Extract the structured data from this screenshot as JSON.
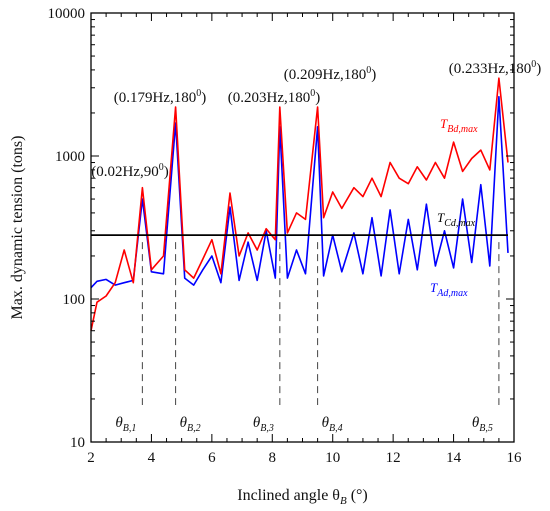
{
  "chart_data": {
    "type": "line",
    "xlabel": "Inclined angle θ",
    "xlabel_sub": "B",
    "xlabel_unit": " (°)",
    "ylabel": "Max. dynamic tension (tons)",
    "y_scale": "log",
    "xlim": [
      2,
      16
    ],
    "ylim": [
      10,
      10000
    ],
    "x_ticks": [
      2,
      4,
      6,
      8,
      10,
      12,
      14,
      16
    ],
    "y_ticks": [
      10,
      100,
      1000,
      10000
    ],
    "grid": false,
    "legend": "none",
    "colors": {
      "Bd": "#ff0000",
      "Ad": "#0000ff",
      "Cd": "#000000"
    },
    "series": [
      {
        "name": "T_Bd,max",
        "label_main": "T",
        "label_sub": "Bd,max",
        "color": "#ff0000",
        "x": [
          2.0,
          2.2,
          2.5,
          2.8,
          3.1,
          3.4,
          3.7,
          4.0,
          4.4,
          4.8,
          5.1,
          5.4,
          5.7,
          6.0,
          6.3,
          6.6,
          6.9,
          7.2,
          7.5,
          7.8,
          8.1,
          8.25,
          8.5,
          8.8,
          9.1,
          9.5,
          9.7,
          10.0,
          10.3,
          10.7,
          11.0,
          11.3,
          11.6,
          11.9,
          12.2,
          12.5,
          12.8,
          13.1,
          13.4,
          13.7,
          14.0,
          14.3,
          14.6,
          14.9,
          15.2,
          15.5,
          15.8
        ],
        "values": [
          60,
          95,
          105,
          130,
          220,
          130,
          600,
          160,
          200,
          2200,
          160,
          140,
          190,
          260,
          150,
          550,
          200,
          290,
          220,
          310,
          260,
          2200,
          290,
          400,
          360,
          2200,
          370,
          560,
          430,
          600,
          520,
          700,
          520,
          900,
          700,
          640,
          840,
          680,
          900,
          700,
          1250,
          780,
          960,
          1100,
          800,
          3500,
          900
        ]
      },
      {
        "name": "T_Ad,max",
        "label_main": "T",
        "label_sub": "Ad,max",
        "color": "#0000ff",
        "x": [
          2.0,
          2.2,
          2.5,
          2.8,
          3.1,
          3.4,
          3.7,
          4.0,
          4.4,
          4.8,
          5.1,
          5.4,
          5.7,
          6.0,
          6.3,
          6.6,
          6.9,
          7.2,
          7.5,
          7.8,
          8.1,
          8.25,
          8.5,
          8.8,
          9.1,
          9.5,
          9.7,
          10.0,
          10.3,
          10.7,
          11.0,
          11.3,
          11.6,
          11.9,
          12.2,
          12.5,
          12.8,
          13.1,
          13.4,
          13.7,
          14.0,
          14.3,
          14.6,
          14.9,
          15.2,
          15.5,
          15.8
        ],
        "values": [
          120,
          133,
          137,
          125,
          130,
          135,
          500,
          155,
          150,
          1700,
          140,
          125,
          160,
          200,
          130,
          440,
          135,
          250,
          135,
          300,
          140,
          1600,
          140,
          220,
          150,
          1600,
          145,
          280,
          155,
          290,
          150,
          370,
          145,
          420,
          150,
          360,
          160,
          460,
          170,
          300,
          165,
          500,
          180,
          630,
          170,
          2600,
          210
        ]
      },
      {
        "name": "T_Cd,max",
        "label_main": "T",
        "label_sub": "Cd,max",
        "color": "#000000",
        "x": [
          2.0,
          15.8
        ],
        "values": [
          280,
          280
        ]
      }
    ],
    "annotations": [
      {
        "text": "(0.02Hz,90",
        "sup": "0",
        "close": ")",
        "x": 3.7,
        "y": 600
      },
      {
        "text": "(0.179Hz,180",
        "sup": "0",
        "close": ")",
        "x": 4.8,
        "y": 2200
      },
      {
        "text": "(0.203Hz,180",
        "sup": "0",
        "close": ")",
        "x": 8.25,
        "y": 2200
      },
      {
        "text": "(0.209Hz,180",
        "sup": "0",
        "close": ")",
        "x": 9.5,
        "y": 2200
      },
      {
        "text": "(0.233Hz,180",
        "sup": "0",
        "close": ")",
        "x": 15.5,
        "y": 3500
      }
    ],
    "resonance_angles": [
      {
        "main": "θ",
        "sub": "B,1",
        "x": 3.7
      },
      {
        "main": "θ",
        "sub": "B,2",
        "x": 4.8
      },
      {
        "main": "θ",
        "sub": "B,3",
        "x": 8.25
      },
      {
        "main": "θ",
        "sub": "B,4",
        "x": 9.5
      },
      {
        "main": "θ",
        "sub": "B,5",
        "x": 15.5
      }
    ]
  }
}
